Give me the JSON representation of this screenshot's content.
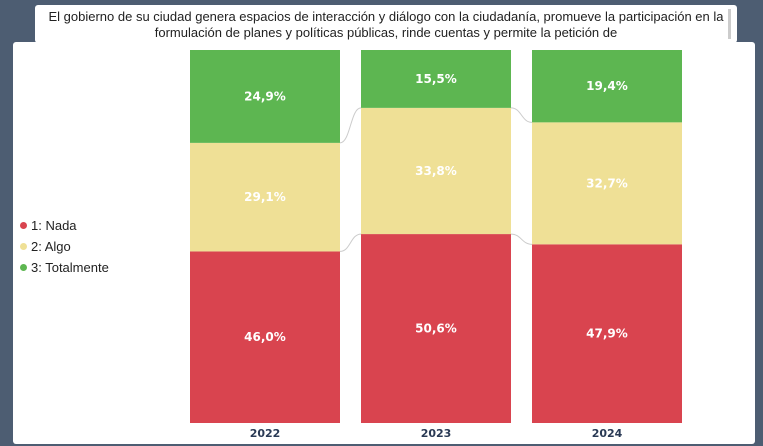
{
  "chart_data": {
    "type": "bar",
    "stacked": "100%",
    "title": "El gobierno de su ciudad genera espacios de interacción y diálogo con la ciudadanía, promueve la participación en la formulación de planes y políticas públicas, rinde cuentas y permite la petición de",
    "categories": [
      "2022",
      "2023",
      "2024"
    ],
    "series": [
      {
        "name": "1: Nada",
        "color": "#d9444f",
        "values": [
          46.0,
          50.6,
          47.9
        ],
        "labels": [
          "46,0%",
          "50,6%",
          "47,9%"
        ]
      },
      {
        "name": "2: Algo",
        "color": "#efe096",
        "values": [
          29.1,
          33.8,
          32.7
        ],
        "labels": [
          "29,1%",
          "33,8%",
          "32,7%"
        ]
      },
      {
        "name": "3: Totalmente",
        "color": "#5db651",
        "values": [
          24.9,
          15.5,
          19.4
        ],
        "labels": [
          "24,9%",
          "15,5%",
          "19,4%"
        ]
      }
    ],
    "ylim": [
      0,
      100
    ],
    "grid": false,
    "legend": "left"
  }
}
